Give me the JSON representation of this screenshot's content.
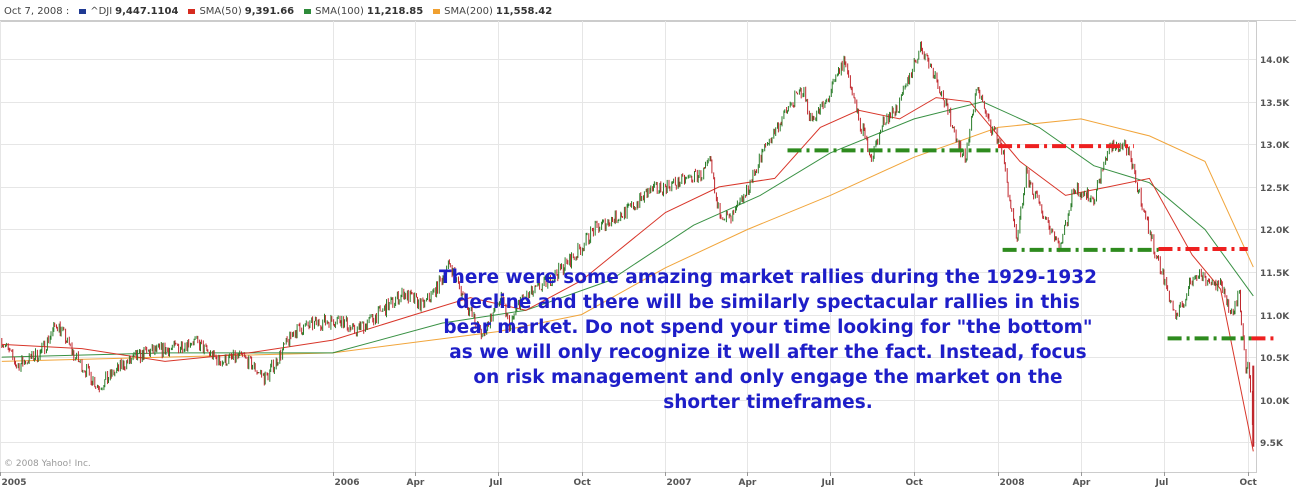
{
  "legend": {
    "date": "Oct 7, 2008 :",
    "items": [
      {
        "name": "^DJI",
        "value": "9,447.1104",
        "color": "#1f3a93"
      },
      {
        "name": "SMA(50)",
        "value": "9,391.66",
        "color": "#d62b1f"
      },
      {
        "name": "SMA(100)",
        "value": "11,218.85",
        "color": "#2e8b3a"
      },
      {
        "name": "SMA(200)",
        "value": "11,558.42",
        "color": "#f0a030"
      }
    ]
  },
  "annotation": "There were some amazing market rallies during the 1929-1932 decline and there will be similarly spectacular rallies in this bear market.  Do not  spend your time looking for \"the bottom\" as we will only recognize it well after the fact.  Instead, focus on risk management and only engage the market on the shorter timeframes.",
  "copyright": "© 2008 Yahoo! Inc.",
  "chart_data": {
    "type": "line",
    "ylim": [
      9150,
      14450
    ],
    "x_range": [
      "2005-01-01",
      "2008-10-10"
    ],
    "y_ticks": [
      {
        "value": 9500,
        "label": "9.5K"
      },
      {
        "value": 10000,
        "label": "10.0K"
      },
      {
        "value": 10500,
        "label": "10.5K"
      },
      {
        "value": 11000,
        "label": "11.0K"
      },
      {
        "value": 11500,
        "label": "11.5K"
      },
      {
        "value": 12000,
        "label": "12.0K"
      },
      {
        "value": 12500,
        "label": "12.5K"
      },
      {
        "value": 13000,
        "label": "13.0K"
      },
      {
        "value": 13500,
        "label": "13.5K"
      },
      {
        "value": 14000,
        "label": "14.0K"
      }
    ],
    "x_ticks": [
      {
        "date": "2005-01-01",
        "label": "2005"
      },
      {
        "date": "2006-01-01",
        "label": "2006"
      },
      {
        "date": "2006-04-01",
        "label": "Apr"
      },
      {
        "date": "2006-07-01",
        "label": "Jul"
      },
      {
        "date": "2006-10-01",
        "label": "Oct"
      },
      {
        "date": "2007-01-01",
        "label": "2007"
      },
      {
        "date": "2007-04-01",
        "label": "Apr"
      },
      {
        "date": "2007-07-01",
        "label": "Jul"
      },
      {
        "date": "2007-10-01",
        "label": "Oct"
      },
      {
        "date": "2008-01-01",
        "label": "2008"
      },
      {
        "date": "2008-04-01",
        "label": "Apr"
      },
      {
        "date": "2008-07-01",
        "label": "Jul"
      },
      {
        "date": "2008-10-01",
        "label": "Oct"
      }
    ],
    "series": [
      {
        "name": "^DJI",
        "color": "#2a7d2a",
        "down_color": "#c0272d",
        "points": [
          [
            "2005-01-03",
            10700
          ],
          [
            "2005-01-20",
            10400
          ],
          [
            "2005-02-15",
            10550
          ],
          [
            "2005-03-05",
            10900
          ],
          [
            "2005-03-25",
            10500
          ],
          [
            "2005-04-20",
            10150
          ],
          [
            "2005-05-15",
            10400
          ],
          [
            "2005-06-10",
            10550
          ],
          [
            "2005-07-10",
            10600
          ],
          [
            "2005-08-01",
            10700
          ],
          [
            "2005-08-30",
            10450
          ],
          [
            "2005-09-25",
            10500
          ],
          [
            "2005-10-20",
            10250
          ],
          [
            "2005-11-20",
            10800
          ],
          [
            "2005-12-15",
            10900
          ],
          [
            "2006-01-10",
            10950
          ],
          [
            "2006-01-25",
            10800
          ],
          [
            "2006-02-20",
            11000
          ],
          [
            "2006-03-20",
            11250
          ],
          [
            "2006-04-10",
            11100
          ],
          [
            "2006-04-25",
            11300
          ],
          [
            "2006-05-10",
            11600
          ],
          [
            "2006-05-25",
            11200
          ],
          [
            "2006-06-14",
            10750
          ],
          [
            "2006-07-05",
            11200
          ],
          [
            "2006-07-15",
            10850
          ],
          [
            "2006-07-25",
            11150
          ],
          [
            "2006-08-15",
            11300
          ],
          [
            "2006-09-01",
            11450
          ],
          [
            "2006-09-25",
            11700
          ],
          [
            "2006-10-15",
            12000
          ],
          [
            "2006-11-01",
            12100
          ],
          [
            "2006-11-25",
            12250
          ],
          [
            "2006-12-15",
            12450
          ],
          [
            "2007-01-15",
            12550
          ],
          [
            "2007-02-10",
            12650
          ],
          [
            "2007-02-20",
            12780
          ],
          [
            "2007-02-27",
            12250
          ],
          [
            "2007-03-14",
            12100
          ],
          [
            "2007-03-30",
            12400
          ],
          [
            "2007-04-20",
            12950
          ],
          [
            "2007-05-15",
            13400
          ],
          [
            "2007-06-01",
            13650
          ],
          [
            "2007-06-10",
            13300
          ],
          [
            "2007-06-25",
            13450
          ],
          [
            "2007-07-17",
            14000
          ],
          [
            "2007-08-01",
            13300
          ],
          [
            "2007-08-16",
            12850
          ],
          [
            "2007-08-30",
            13300
          ],
          [
            "2007-09-15",
            13450
          ],
          [
            "2007-10-01",
            13950
          ],
          [
            "2007-10-09",
            14150
          ],
          [
            "2007-10-25",
            13800
          ],
          [
            "2007-11-10",
            13300
          ],
          [
            "2007-11-26",
            12800
          ],
          [
            "2007-12-10",
            13700
          ],
          [
            "2007-12-20",
            13300
          ],
          [
            "2008-01-05",
            13000
          ],
          [
            "2008-01-22",
            11800
          ],
          [
            "2008-02-01",
            12650
          ],
          [
            "2008-02-15",
            12300
          ],
          [
            "2008-03-10",
            11800
          ],
          [
            "2008-03-25",
            12500
          ],
          [
            "2008-04-15",
            12350
          ],
          [
            "2008-05-02",
            12950
          ],
          [
            "2008-05-20",
            13000
          ],
          [
            "2008-06-05",
            12400
          ],
          [
            "2008-06-20",
            11800
          ],
          [
            "2008-07-15",
            10950
          ],
          [
            "2008-08-05",
            11500
          ],
          [
            "2008-08-20",
            11400
          ],
          [
            "2008-09-05",
            11300
          ],
          [
            "2008-09-15",
            10950
          ],
          [
            "2008-09-22",
            11300
          ],
          [
            "2008-09-29",
            10400
          ],
          [
            "2008-10-03",
            10400
          ],
          [
            "2008-10-07",
            9447
          ]
        ]
      },
      {
        "name": "SMA(50)",
        "color": "#d62b1f",
        "points": [
          [
            "2005-01-03",
            10650
          ],
          [
            "2005-04-01",
            10600
          ],
          [
            "2005-07-01",
            10450
          ],
          [
            "2005-10-01",
            10550
          ],
          [
            "2006-01-01",
            10700
          ],
          [
            "2006-04-01",
            11000
          ],
          [
            "2006-06-01",
            11200
          ],
          [
            "2006-08-01",
            11050
          ],
          [
            "2006-10-01",
            11400
          ],
          [
            "2007-01-01",
            12200
          ],
          [
            "2007-03-01",
            12500
          ],
          [
            "2007-05-01",
            12600
          ],
          [
            "2007-06-20",
            13200
          ],
          [
            "2007-08-01",
            13400
          ],
          [
            "2007-09-15",
            13300
          ],
          [
            "2007-10-25",
            13550
          ],
          [
            "2007-12-01",
            13500
          ],
          [
            "2008-01-25",
            12800
          ],
          [
            "2008-03-15",
            12400
          ],
          [
            "2008-05-01",
            12500
          ],
          [
            "2008-06-15",
            12600
          ],
          [
            "2008-08-01",
            11700
          ],
          [
            "2008-09-01",
            11300
          ],
          [
            "2008-10-07",
            9392
          ]
        ]
      },
      {
        "name": "SMA(100)",
        "color": "#2e8b3a",
        "points": [
          [
            "2005-01-03",
            10500
          ],
          [
            "2005-07-01",
            10550
          ],
          [
            "2006-01-01",
            10550
          ],
          [
            "2006-05-01",
            10900
          ],
          [
            "2006-08-01",
            11050
          ],
          [
            "2006-11-01",
            11400
          ],
          [
            "2007-02-01",
            12050
          ],
          [
            "2007-04-15",
            12400
          ],
          [
            "2007-07-01",
            12900
          ],
          [
            "2007-10-01",
            13300
          ],
          [
            "2007-12-15",
            13500
          ],
          [
            "2008-02-15",
            13200
          ],
          [
            "2008-04-15",
            12750
          ],
          [
            "2008-06-15",
            12550
          ],
          [
            "2008-08-15",
            12000
          ],
          [
            "2008-10-07",
            11219
          ]
        ]
      },
      {
        "name": "SMA(200)",
        "color": "#f0a030",
        "points": [
          [
            "2005-01-03",
            10450
          ],
          [
            "2005-07-01",
            10500
          ],
          [
            "2006-01-01",
            10550
          ],
          [
            "2006-07-01",
            10800
          ],
          [
            "2006-10-01",
            11000
          ],
          [
            "2007-01-01",
            11550
          ],
          [
            "2007-04-01",
            12000
          ],
          [
            "2007-07-01",
            12400
          ],
          [
            "2007-10-01",
            12850
          ],
          [
            "2008-01-01",
            13200
          ],
          [
            "2008-04-01",
            13300
          ],
          [
            "2008-06-15",
            13100
          ],
          [
            "2008-08-15",
            12800
          ],
          [
            "2008-10-07",
            11558
          ]
        ]
      }
    ],
    "reference_lines": [
      {
        "color": "#2e8b1e",
        "y": 12930,
        "x1": "2007-05-15",
        "x2": "2008-01-01"
      },
      {
        "color": "#ee2020",
        "y": 12980,
        "x1": "2008-01-01",
        "x2": "2008-05-29"
      },
      {
        "color": "#2e8b1e",
        "y": 11760,
        "x1": "2008-01-06",
        "x2": "2008-06-25"
      },
      {
        "color": "#ee2020",
        "y": 11770,
        "x1": "2008-06-25",
        "x2": "2008-10-01"
      },
      {
        "color": "#2e8b1e",
        "y": 10720,
        "x1": "2008-07-05",
        "x2": "2008-10-05"
      },
      {
        "color": "#ee2020",
        "y": 10720,
        "x1": "2008-10-05",
        "x2": "2008-10-31"
      }
    ]
  }
}
